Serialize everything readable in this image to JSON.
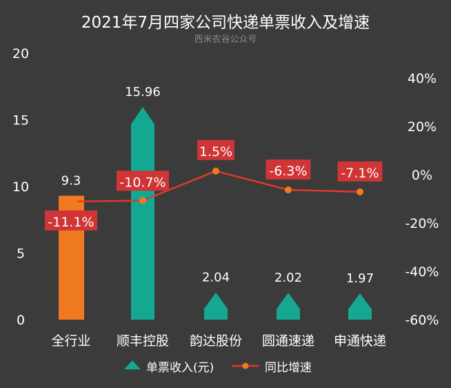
{
  "chart_data": {
    "type": "bar+line",
    "title": "2021年7月四家公司快递单票收入及增速",
    "watermark": "西米农谷公众号",
    "categories": [
      "全行业",
      "顺丰控股",
      "韵达股份",
      "圆通速递",
      "申通快递"
    ],
    "series": [
      {
        "name": "单票收入(元)",
        "type": "bar",
        "axis": "left",
        "values": [
          9.3,
          15.96,
          2.04,
          2.02,
          1.97
        ],
        "value_labels": [
          "9.3",
          "15.96",
          "2.04",
          "2.02",
          "1.97"
        ]
      },
      {
        "name": "同比增速",
        "type": "line",
        "axis": "right",
        "values": [
          -11.1,
          -10.7,
          1.5,
          -6.3,
          -7.1
        ],
        "value_labels": [
          "-11.1%",
          "-10.7%",
          "1.5%",
          "-6.3%",
          "-7.1%"
        ]
      }
    ],
    "left_axis": {
      "ylim": [
        0,
        20
      ],
      "ticks": [
        "0",
        "5",
        "10",
        "15",
        "20"
      ]
    },
    "right_axis": {
      "ylim": [
        -60,
        40
      ],
      "ticks": [
        "-60%",
        "-40%",
        "-20%",
        "0%",
        "20%",
        "40%"
      ]
    },
    "grid": false,
    "legend": "bottom",
    "colors": {
      "background": "#3b3b3b",
      "industry_bar": "#f07a22",
      "company_bar": "#14a893",
      "line": "#e2392b",
      "marker": "#f07a22",
      "label_box": "#cf3535",
      "text": "#ffffff"
    }
  }
}
